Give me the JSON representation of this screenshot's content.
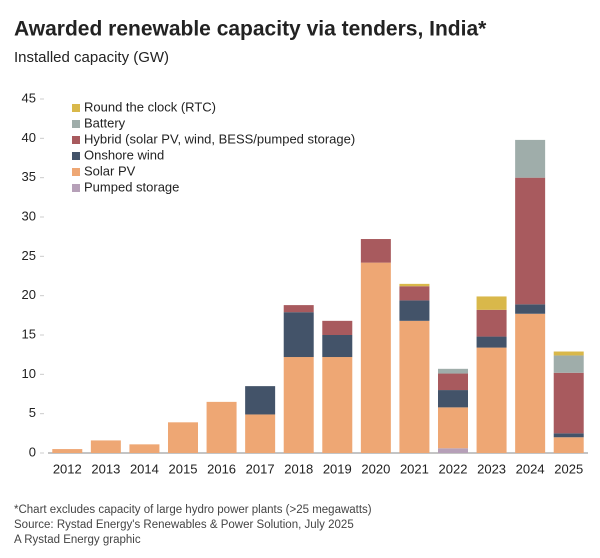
{
  "chart_data": {
    "type": "stacked-bar",
    "title": "Awarded renewable capacity via tenders, India*",
    "subtitle": "Installed capacity (GW)",
    "notes": [
      "*Chart excludes capacity of large hydro power plants (>25 megawatts)",
      "Source: Rystad Energy's Renewables & Power Solution, July 2025",
      "A Rystad Energy graphic"
    ],
    "categories": [
      "2012",
      "2013",
      "2014",
      "2015",
      "2016",
      "2017",
      "2018",
      "2019",
      "2020",
      "2021",
      "2022",
      "2023",
      "2024",
      "2025"
    ],
    "series": [
      {
        "name": "Round the clock (RTC)",
        "color": "#d9b84a",
        "values": [
          null,
          null,
          null,
          null,
          null,
          null,
          null,
          null,
          null,
          0.3,
          null,
          1.7,
          null,
          0.5
        ]
      },
      {
        "name": "Battery",
        "color": "#9fadaa",
        "values": [
          null,
          null,
          null,
          null,
          null,
          null,
          null,
          null,
          null,
          null,
          0.6,
          null,
          4.8,
          2.2
        ]
      },
      {
        "name": "Hybrid (solar PV, wind, BESS/pumped storage)",
        "color": "#a85a5e",
        "values": [
          null,
          null,
          null,
          null,
          null,
          null,
          0.9,
          1.8,
          3.0,
          1.8,
          2.1,
          3.4,
          16.1,
          7.7
        ]
      },
      {
        "name": "Onshore wind",
        "color": "#435369",
        "values": [
          null,
          null,
          null,
          null,
          null,
          3.6,
          5.7,
          2.8,
          null,
          2.6,
          2.2,
          1.4,
          1.2,
          0.5
        ]
      },
      {
        "name": "Solar PV",
        "color": "#eea774",
        "values": [
          0.5,
          1.6,
          1.1,
          3.9,
          6.5,
          4.9,
          12.2,
          12.2,
          24.2,
          16.8,
          5.2,
          13.4,
          17.7,
          2.0
        ]
      },
      {
        "name": "Pumped storage",
        "color": "#b6a0b8",
        "values": [
          null,
          null,
          null,
          null,
          null,
          null,
          null,
          null,
          null,
          null,
          0.6,
          null,
          null,
          null
        ]
      }
    ],
    "ylim": [
      0,
      45
    ],
    "yticks": [
      0,
      5,
      10,
      15,
      20,
      25,
      30,
      35,
      40,
      45
    ]
  }
}
